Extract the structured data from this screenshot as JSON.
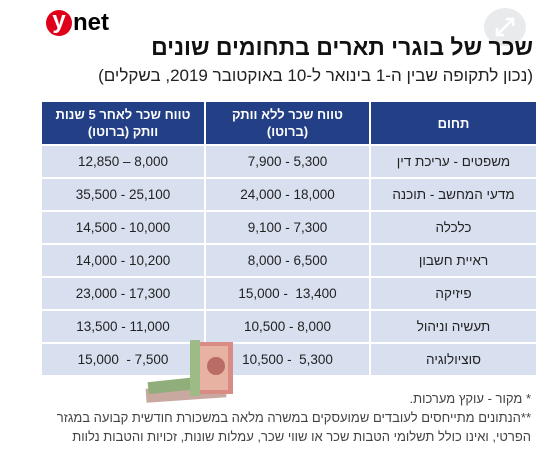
{
  "logo": {
    "mark": "y",
    "text": "net"
  },
  "header": {
    "title": "שכר של בוגרי תארים בתחומים שונים",
    "subtitle": "(נכון לתקופה שבין ה-1 בינואר ל-10 באוקטובר 2019, בשקלים)"
  },
  "table": {
    "columns": [
      [
        "תחום"
      ],
      [
        "טווח שכר ללא וותק",
        "(ברוטו)"
      ],
      [
        "טווח שכר לאחר 5 שנות",
        "וותק (ברוטו)"
      ]
    ],
    "rows": [
      [
        "משפטים - עריכת דין",
        "7,900 - 5,300",
        "12,850 – 8,000"
      ],
      [
        "מדעי המחשב - תוכנה",
        "24,000 - 18,000",
        "35,500 - 25,100"
      ],
      [
        "כלכלה",
        "9,100 - 7,300",
        "14,500 - 10,000"
      ],
      [
        "ראיית חשבון",
        "8,000 - 6,500",
        "14,000 - 10,200"
      ],
      [
        "פיזיקה",
        "15,000 -  13,400",
        "23,000 - 17,300"
      ],
      [
        "תעשיה וניהול",
        "10,500 - 8,000",
        "13,500 - 11,000"
      ],
      [
        "סוציולוגיה",
        "10,500 -  5,300",
        "15,000  - 7,500"
      ]
    ]
  },
  "footnotes": [
    "* מקור - עוקץ מערכות.",
    "**הנתונים מתייחסים לעובדים שמועסקים במשרה מלאה במשכורת חודשית קבועה במגזר",
    "הפרטי, ואינו כולל תשלומי  הטבות שכר או שווי שכר, עמלות שונות, זכויות והטבות נלוות"
  ]
}
